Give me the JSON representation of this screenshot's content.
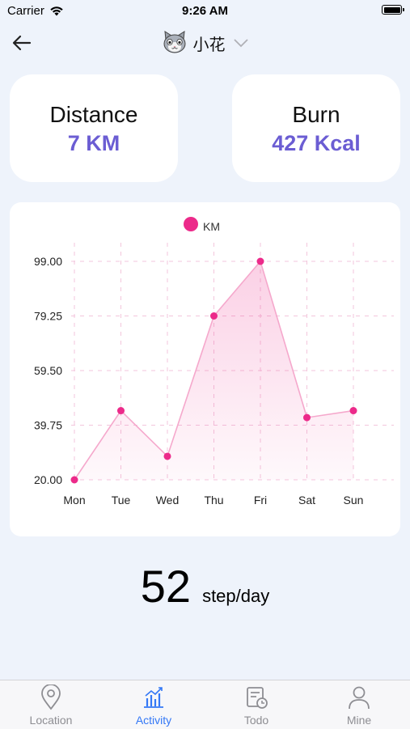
{
  "status_bar": {
    "carrier": "Carrier",
    "time": "9:26 AM"
  },
  "nav": {
    "title": "小花"
  },
  "stats": [
    {
      "label": "Distance",
      "value": "7 KM"
    },
    {
      "label": "Burn",
      "value": "427 Kcal"
    }
  ],
  "chart_data": {
    "type": "line",
    "categories": [
      "Mon",
      "Tue",
      "Wed",
      "Thu",
      "Fri",
      "Sat",
      "Sun"
    ],
    "series": [
      {
        "name": "KM",
        "values": [
          20.0,
          45.0,
          28.5,
          79.25,
          99.0,
          42.5,
          45.0
        ],
        "color": "#ec2a8a"
      }
    ],
    "ylim": [
      20.0,
      99.0
    ],
    "yticks": [
      "99.00",
      "79.25",
      "59.50",
      "39.75",
      "20.00"
    ],
    "grid": true,
    "legend": "top-center",
    "fill": "area"
  },
  "steps": {
    "value": "52",
    "unit": "step/day"
  },
  "tabs": [
    {
      "label": "Location",
      "icon": "location-pin-icon"
    },
    {
      "label": "Activity",
      "icon": "bar-chart-icon"
    },
    {
      "label": "Todo",
      "icon": "todo-icon"
    },
    {
      "label": "Mine",
      "icon": "person-icon"
    }
  ],
  "colors": {
    "accent": "#6b5dd3",
    "tab_active": "#3478f6",
    "tab_inactive": "#8e8e93",
    "line": "#ec2a8a"
  }
}
